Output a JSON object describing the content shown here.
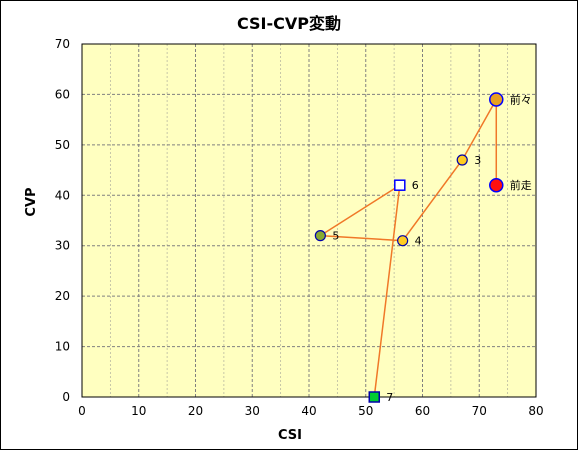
{
  "chart_data": {
    "type": "scatter",
    "title": "CSI-CVP変動",
    "xlabel": "CSI",
    "ylabel": "CVP",
    "xlim": [
      0,
      80
    ],
    "ylim": [
      0,
      70
    ],
    "xticks": [
      0,
      10,
      20,
      30,
      40,
      50,
      60,
      70,
      80
    ],
    "yticks": [
      0,
      10,
      20,
      30,
      40,
      50,
      60,
      70
    ],
    "grid": true,
    "minor_x_grid_step": 5,
    "colors": {
      "plot_background": "#ffffc0",
      "line": "#f07828",
      "grid": "#808080"
    },
    "points": [
      {
        "label": "7",
        "x": 51.5,
        "y": 0,
        "marker": "square",
        "fill": "#00cc33",
        "stroke": "#0000aa"
      },
      {
        "label": "6",
        "x": 56,
        "y": 42,
        "marker": "square",
        "fill": "#ffffff",
        "stroke": "#0000ff"
      },
      {
        "label": "5",
        "x": 42,
        "y": 32,
        "marker": "circle",
        "fill": "#88aa33",
        "stroke": "#0000aa"
      },
      {
        "label": "4",
        "x": 56.5,
        "y": 31,
        "marker": "circle",
        "fill": "#ffcc22",
        "stroke": "#0000aa"
      },
      {
        "label": "3",
        "x": 67,
        "y": 47,
        "marker": "circle",
        "fill": "#ffcc22",
        "stroke": "#0000aa"
      },
      {
        "label": "前々",
        "x": 73,
        "y": 59,
        "marker": "circle-large",
        "fill": "#e8a020",
        "stroke": "#0000ff"
      },
      {
        "label": "前走",
        "x": 73,
        "y": 42,
        "marker": "circle-large",
        "fill": "#ff1010",
        "stroke": "#0000ff"
      }
    ]
  }
}
